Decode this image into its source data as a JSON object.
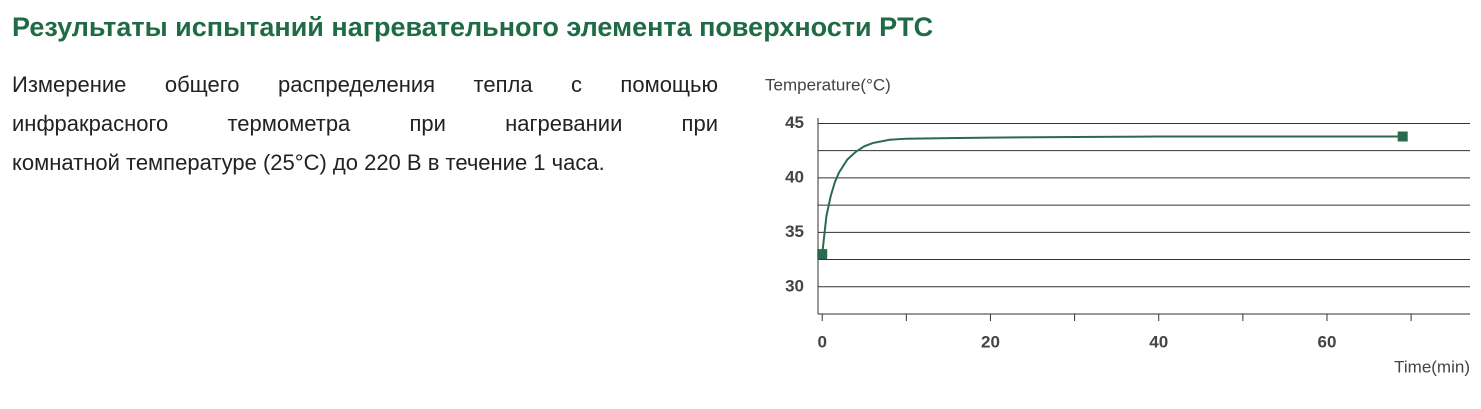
{
  "header": {
    "title": "Результаты испытаний нагревательного элемента поверхности PTC"
  },
  "text": {
    "lines": [
      "Измерение общего распределения тепла с помощью",
      "инфракрасного термометра при нагревании при",
      "комнатной температуре (25°C) до 220 В в течение 1 часа."
    ]
  },
  "chart_data": {
    "type": "line",
    "y_label": "Temperature(°C)",
    "x_label": "Time(min)",
    "series": [
      {
        "color": "#2a6a4e",
        "x": [
          0,
          0.5,
          1,
          1.5,
          2,
          3,
          4,
          5,
          6,
          8,
          10,
          15,
          20,
          30,
          40,
          50,
          60,
          69
        ],
        "values": [
          33,
          36.5,
          38.3,
          39.6,
          40.5,
          41.7,
          42.4,
          42.9,
          43.2,
          43.5,
          43.6,
          43.65,
          43.7,
          43.75,
          43.8,
          43.8,
          43.8,
          43.8
        ]
      }
    ],
    "markers": "ends",
    "xlim": [
      -0.5,
      77
    ],
    "ylim": [
      27.5,
      45.5
    ],
    "xticks": [
      0,
      20,
      40,
      60
    ],
    "xminor": [
      10,
      30,
      50,
      70
    ],
    "yticks": [
      30,
      35,
      40,
      45
    ],
    "yminor": [
      27.5,
      32.5,
      37.5,
      42.5
    ],
    "grid": true
  }
}
